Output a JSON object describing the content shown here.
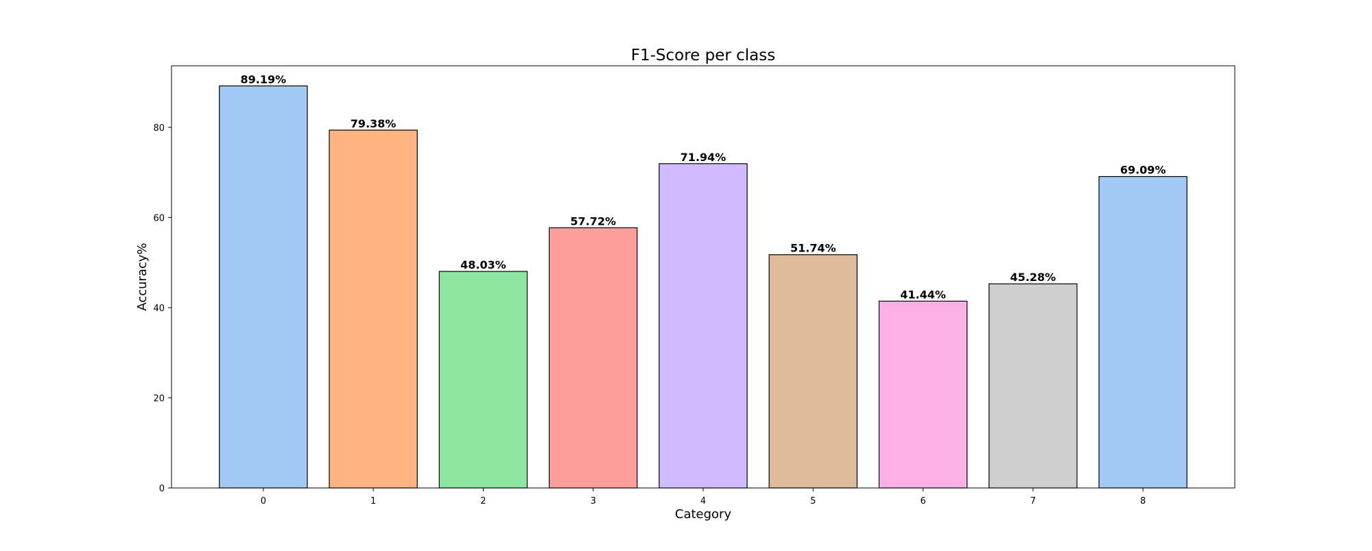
{
  "chart_data": {
    "type": "bar",
    "title": "F1-Score per class",
    "xlabel": "Category",
    "ylabel": "Accuracy%",
    "categories": [
      "0",
      "1",
      "2",
      "3",
      "4",
      "5",
      "6",
      "7",
      "8"
    ],
    "values": [
      89.19,
      79.38,
      48.03,
      57.72,
      71.94,
      51.74,
      41.44,
      45.28,
      69.09
    ],
    "value_labels": [
      "89.19%",
      "79.38%",
      "48.03%",
      "57.72%",
      "71.94%",
      "51.74%",
      "41.44%",
      "45.28%",
      "69.09%"
    ],
    "colors": [
      "#a1c9f4",
      "#ffb482",
      "#8de5a1",
      "#ff9f9b",
      "#d0bbff",
      "#debb9b",
      "#fab0e4",
      "#cfcfcf",
      "#a1c9f4"
    ],
    "bar_edge_color": "#000000",
    "yticks": [
      0,
      20,
      40,
      60,
      80
    ],
    "ylim": [
      0,
      93.65
    ],
    "grid": false,
    "legend": "none"
  }
}
